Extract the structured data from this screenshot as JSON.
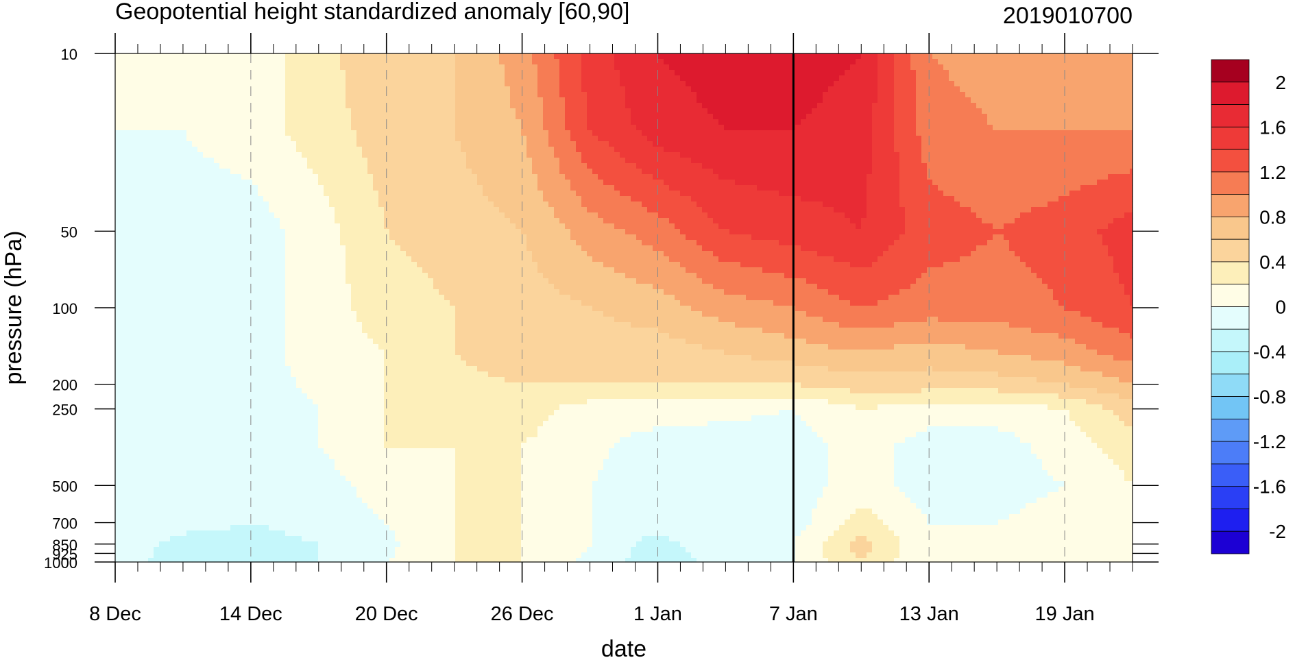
{
  "chart_data": {
    "type": "heatmap",
    "subtype": "filled-contour",
    "title": "Geopotential height standardized anomaly [60,90]",
    "date_stamp": "2019010700",
    "xlabel": "date",
    "ylabel": "pressure (hPa)",
    "x_tick_labels": [
      "8 Dec",
      "14 Dec",
      "20 Dec",
      "26 Dec",
      "1 Jan",
      "7 Jan",
      "13 Jan",
      "19 Jan"
    ],
    "x_tick_days": [
      0,
      6,
      12,
      18,
      24,
      30,
      36,
      42
    ],
    "x_range_days": [
      0,
      45
    ],
    "y_tick_labels": [
      "10",
      "50",
      "100",
      "200",
      "250",
      "500",
      "700",
      "850",
      "925",
      "1000"
    ],
    "y_ticks_hpa": [
      10,
      50,
      100,
      200,
      250,
      500,
      700,
      850,
      925,
      1000
    ],
    "y_range_hpa": [
      10,
      1000
    ],
    "y_scale": "log, pressure decreasing upward",
    "vertical_line_day": 30,
    "colorbar": {
      "levels": [
        -2.2,
        -2.0,
        -1.8,
        -1.6,
        -1.4,
        -1.2,
        -1.0,
        -0.8,
        -0.6,
        -0.4,
        -0.2,
        0.0,
        0.2,
        0.4,
        0.6,
        0.8,
        1.0,
        1.2,
        1.4,
        1.6,
        1.8,
        2.0,
        2.2
      ],
      "colors": [
        "#1c00d4",
        "#1e1ff0",
        "#2a3ff5",
        "#3a5ef8",
        "#4c7df8",
        "#5e9bf7",
        "#72c5f5",
        "#8fdbf7",
        "#aaeff9",
        "#c5f7fb",
        "#e4fdfd",
        "#fffde6",
        "#fdefba",
        "#fbd49c",
        "#f9c78c",
        "#f8a46e",
        "#f67c54",
        "#f3503f",
        "#ee3a38",
        "#e82b34",
        "#dd1a2e",
        "#a6001f"
      ],
      "tick_labels": [
        "2",
        "1.6",
        "1.2",
        "0.8",
        "0.4",
        "0",
        "-0.4",
        "-0.8",
        "-1.2",
        "-1.6",
        "-2"
      ]
    },
    "field": {
      "description": "Standardized anomaly values on a date × pressure grid (approximate, read from contours).",
      "days": [
        0,
        3,
        6,
        9,
        12,
        15,
        18,
        21,
        24,
        27,
        30,
        33,
        36,
        39,
        42,
        45
      ],
      "pressures_hpa": [
        10,
        20,
        50,
        100,
        150,
        200,
        250,
        350,
        500,
        700,
        850,
        1000
      ],
      "values": [
        [
          0.0,
          0.0,
          0.1,
          0.3,
          0.6,
          0.6,
          0.9,
          1.5,
          1.8,
          1.9,
          1.9,
          1.8,
          1.0,
          0.9,
          0.9,
          0.9
        ],
        [
          0.0,
          0.0,
          0.1,
          0.3,
          0.5,
          0.6,
          0.8,
          1.4,
          1.7,
          1.8,
          1.8,
          1.7,
          1.1,
          1.0,
          1.0,
          1.0
        ],
        [
          0.0,
          -0.1,
          -0.1,
          0.1,
          0.4,
          0.5,
          0.6,
          0.9,
          1.1,
          1.4,
          1.5,
          1.6,
          1.3,
          1.2,
          1.3,
          1.5
        ],
        [
          0.0,
          -0.1,
          -0.1,
          0.1,
          0.3,
          0.4,
          0.5,
          0.6,
          0.7,
          0.9,
          1.0,
          1.2,
          1.1,
          1.1,
          1.2,
          1.4
        ],
        [
          0.0,
          -0.1,
          -0.1,
          0.1,
          0.2,
          0.4,
          0.5,
          0.5,
          0.5,
          0.6,
          0.7,
          0.8,
          0.7,
          0.8,
          0.9,
          1.1
        ],
        [
          0.0,
          -0.1,
          -0.1,
          0.05,
          0.2,
          0.35,
          0.4,
          0.4,
          0.4,
          0.4,
          0.4,
          0.5,
          0.5,
          0.5,
          0.6,
          0.8
        ],
        [
          0.0,
          -0.1,
          -0.1,
          0.0,
          0.2,
          0.3,
          0.3,
          0.1,
          0.1,
          0.05,
          0.0,
          0.2,
          0.1,
          0.1,
          0.2,
          0.5
        ],
        [
          0.0,
          -0.1,
          -0.1,
          0.0,
          0.2,
          0.2,
          0.2,
          0.05,
          -0.1,
          -0.1,
          -0.1,
          0.1,
          -0.1,
          -0.1,
          0.1,
          0.3
        ],
        [
          0.0,
          -0.1,
          -0.1,
          -0.1,
          0.1,
          0.2,
          0.2,
          0.0,
          -0.1,
          -0.1,
          -0.1,
          0.1,
          -0.1,
          -0.1,
          0.0,
          0.2
        ],
        [
          0.0,
          -0.1,
          -0.2,
          -0.1,
          0.0,
          0.2,
          0.2,
          0.0,
          -0.1,
          0.0,
          -0.1,
          0.3,
          0.0,
          0.0,
          0.1,
          0.2
        ],
        [
          0.0,
          -0.3,
          -0.3,
          -0.2,
          -0.05,
          0.2,
          0.2,
          0.0,
          -0.3,
          0.0,
          0.0,
          0.5,
          0.0,
          0.0,
          0.1,
          0.2
        ],
        [
          0.0,
          -0.4,
          -0.35,
          -0.2,
          0.0,
          0.2,
          0.2,
          -0.05,
          -0.35,
          -0.1,
          0.0,
          0.4,
          0.0,
          0.0,
          0.1,
          0.2
        ]
      ]
    }
  }
}
